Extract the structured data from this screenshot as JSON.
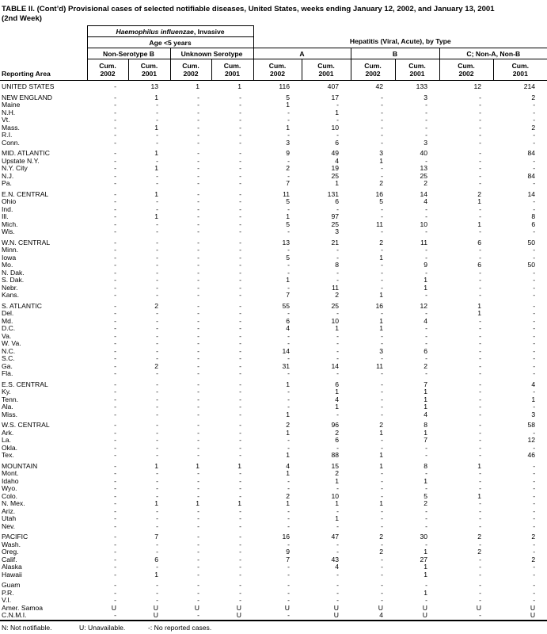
{
  "colors": {
    "text": "#000000",
    "background": "#ffffff",
    "rule": "#000000"
  },
  "title": {
    "line1": "TABLE II. (Cont’d) Provisional cases of selected notifiable diseases, United States, weeks ending January 12, 2002, and January 13, 2001",
    "line2": "(2nd Week)"
  },
  "header": {
    "reporting_area": "Reporting Area",
    "group1_italic": "Haemophilus influenzae",
    "group1_rest": ", Invasive",
    "group1_sub": "Age <5 years",
    "group2": "Hepatitis (Viral, Acute), by Type",
    "subgroups": {
      "non_serotype_b": "Non-Serotype B",
      "unknown_serotype": "Unknown Serotype",
      "hep_a": "A",
      "hep_b": "B",
      "hep_c": "C; Non-A, Non-B"
    },
    "cum_label": "Cum.",
    "years": [
      "2002",
      "2001",
      "2002",
      "2001",
      "2002",
      "2001",
      "2002",
      "2001",
      "2002",
      "2001"
    ]
  },
  "sections": [
    {
      "rows": [
        {
          "area": "UNITED STATES",
          "values": [
            "-",
            "13",
            "1",
            "1",
            "116",
            "407",
            "42",
            "133",
            "12",
            "214"
          ]
        }
      ]
    },
    {
      "rows": [
        {
          "area": "NEW ENGLAND",
          "values": [
            "-",
            "1",
            "-",
            "-",
            "5",
            "17",
            "-",
            "3",
            "-",
            "2"
          ]
        },
        {
          "area": "Maine",
          "values": [
            "-",
            "-",
            "-",
            "-",
            "1",
            "-",
            "-",
            "-",
            "-",
            "-"
          ]
        },
        {
          "area": "N.H.",
          "values": [
            "-",
            "-",
            "-",
            "-",
            "-",
            "1",
            "-",
            "-",
            "-",
            "-"
          ]
        },
        {
          "area": "Vt.",
          "values": [
            "-",
            "-",
            "-",
            "-",
            "-",
            "-",
            "-",
            "-",
            "-",
            "-"
          ]
        },
        {
          "area": "Mass.",
          "values": [
            "-",
            "1",
            "-",
            "-",
            "1",
            "10",
            "-",
            "-",
            "-",
            "2"
          ]
        },
        {
          "area": "R.I.",
          "values": [
            "-",
            "-",
            "-",
            "-",
            "-",
            "-",
            "-",
            "-",
            "-",
            "-"
          ]
        },
        {
          "area": "Conn.",
          "values": [
            "-",
            "-",
            "-",
            "-",
            "3",
            "6",
            "-",
            "3",
            "-",
            "-"
          ]
        }
      ]
    },
    {
      "rows": [
        {
          "area": "MID. ATLANTIC",
          "values": [
            "-",
            "1",
            "-",
            "-",
            "9",
            "49",
            "3",
            "40",
            "-",
            "84"
          ]
        },
        {
          "area": "Upstate N.Y.",
          "values": [
            "-",
            "-",
            "-",
            "-",
            "-",
            "4",
            "1",
            "-",
            "-",
            "-"
          ]
        },
        {
          "area": "N.Y. City",
          "values": [
            "-",
            "1",
            "-",
            "-",
            "2",
            "19",
            "-",
            "13",
            "-",
            "-"
          ]
        },
        {
          "area": "N.J.",
          "values": [
            "-",
            "-",
            "-",
            "-",
            "-",
            "25",
            "-",
            "25",
            "-",
            "84"
          ]
        },
        {
          "area": "Pa.",
          "values": [
            "-",
            "-",
            "-",
            "-",
            "7",
            "1",
            "2",
            "2",
            "-",
            "-"
          ]
        }
      ]
    },
    {
      "rows": [
        {
          "area": "E.N. CENTRAL",
          "values": [
            "-",
            "1",
            "-",
            "-",
            "11",
            "131",
            "16",
            "14",
            "2",
            "14"
          ]
        },
        {
          "area": "Ohio",
          "values": [
            "-",
            "-",
            "-",
            "-",
            "5",
            "6",
            "5",
            "4",
            "1",
            "-"
          ]
        },
        {
          "area": "Ind.",
          "values": [
            "-",
            "-",
            "-",
            "-",
            "-",
            "-",
            "-",
            "-",
            "-",
            "-"
          ]
        },
        {
          "area": "Ill.",
          "values": [
            "-",
            "1",
            "-",
            "-",
            "1",
            "97",
            "-",
            "-",
            "-",
            "8"
          ]
        },
        {
          "area": "Mich.",
          "values": [
            "-",
            "-",
            "-",
            "-",
            "5",
            "25",
            "11",
            "10",
            "1",
            "6"
          ]
        },
        {
          "area": "Wis.",
          "values": [
            "-",
            "-",
            "-",
            "-",
            "-",
            "3",
            "-",
            "-",
            "-",
            "-"
          ]
        }
      ]
    },
    {
      "rows": [
        {
          "area": "W.N. CENTRAL",
          "values": [
            "-",
            "-",
            "-",
            "-",
            "13",
            "21",
            "2",
            "11",
            "6",
            "50"
          ]
        },
        {
          "area": "Minn.",
          "values": [
            "-",
            "-",
            "-",
            "-",
            "-",
            "-",
            "-",
            "-",
            "-",
            "-"
          ]
        },
        {
          "area": "Iowa",
          "values": [
            "-",
            "-",
            "-",
            "-",
            "5",
            "-",
            "1",
            "-",
            "-",
            "-"
          ]
        },
        {
          "area": "Mo.",
          "values": [
            "-",
            "-",
            "-",
            "-",
            "-",
            "8",
            "-",
            "9",
            "6",
            "50"
          ]
        },
        {
          "area": "N. Dak.",
          "values": [
            "-",
            "-",
            "-",
            "-",
            "-",
            "-",
            "-",
            "-",
            "-",
            "-"
          ]
        },
        {
          "area": "S. Dak.",
          "values": [
            "-",
            "-",
            "-",
            "-",
            "1",
            "-",
            "-",
            "1",
            "-",
            "-"
          ]
        },
        {
          "area": "Nebr.",
          "values": [
            "-",
            "-",
            "-",
            "-",
            "-",
            "11",
            "-",
            "1",
            "-",
            "-"
          ]
        },
        {
          "area": "Kans.",
          "values": [
            "-",
            "-",
            "-",
            "-",
            "7",
            "2",
            "1",
            "-",
            "-",
            "-"
          ]
        }
      ]
    },
    {
      "rows": [
        {
          "area": "S. ATLANTIC",
          "values": [
            "-",
            "2",
            "-",
            "-",
            "55",
            "25",
            "16",
            "12",
            "1",
            "-"
          ]
        },
        {
          "area": "Del.",
          "values": [
            "-",
            "-",
            "-",
            "-",
            "-",
            "-",
            "-",
            "-",
            "1",
            "-"
          ]
        },
        {
          "area": "Md.",
          "values": [
            "-",
            "-",
            "-",
            "-",
            "6",
            "10",
            "1",
            "4",
            "-",
            "-"
          ]
        },
        {
          "area": "D.C.",
          "values": [
            "-",
            "-",
            "-",
            "-",
            "4",
            "1",
            "1",
            "-",
            "-",
            "-"
          ]
        },
        {
          "area": "Va.",
          "values": [
            "-",
            "-",
            "-",
            "-",
            "-",
            "-",
            "-",
            "-",
            "-",
            "-"
          ]
        },
        {
          "area": "W. Va.",
          "values": [
            "-",
            "-",
            "-",
            "-",
            "-",
            "-",
            "-",
            "-",
            "-",
            "-"
          ]
        },
        {
          "area": "N.C.",
          "values": [
            "-",
            "-",
            "-",
            "-",
            "14",
            "-",
            "3",
            "6",
            "-",
            "-"
          ]
        },
        {
          "area": "S.C.",
          "values": [
            "-",
            "-",
            "-",
            "-",
            "-",
            "-",
            "-",
            "-",
            "-",
            "-"
          ]
        },
        {
          "area": "Ga.",
          "values": [
            "-",
            "2",
            "-",
            "-",
            "31",
            "14",
            "11",
            "2",
            "-",
            "-"
          ]
        },
        {
          "area": "Fla.",
          "values": [
            "-",
            "-",
            "-",
            "-",
            "-",
            "-",
            "-",
            "-",
            "-",
            "-"
          ]
        }
      ]
    },
    {
      "rows": [
        {
          "area": "E.S. CENTRAL",
          "values": [
            "-",
            "-",
            "-",
            "-",
            "1",
            "6",
            "-",
            "7",
            "-",
            "4"
          ]
        },
        {
          "area": "Ky.",
          "values": [
            "-",
            "-",
            "-",
            "-",
            "-",
            "1",
            "-",
            "1",
            "-",
            "-"
          ]
        },
        {
          "area": "Tenn.",
          "values": [
            "-",
            "-",
            "-",
            "-",
            "-",
            "4",
            "-",
            "1",
            "-",
            "1"
          ]
        },
        {
          "area": "Ala.",
          "values": [
            "-",
            "-",
            "-",
            "-",
            "-",
            "1",
            "-",
            "1",
            "-",
            "-"
          ]
        },
        {
          "area": "Miss.",
          "values": [
            "-",
            "-",
            "-",
            "-",
            "1",
            "-",
            "-",
            "4",
            "-",
            "3"
          ]
        }
      ]
    },
    {
      "rows": [
        {
          "area": "W.S. CENTRAL",
          "values": [
            "-",
            "-",
            "-",
            "-",
            "2",
            "96",
            "2",
            "8",
            "-",
            "58"
          ]
        },
        {
          "area": "Ark.",
          "values": [
            "-",
            "-",
            "-",
            "-",
            "1",
            "2",
            "1",
            "1",
            "-",
            "-"
          ]
        },
        {
          "area": "La.",
          "values": [
            "-",
            "-",
            "-",
            "-",
            "-",
            "6",
            "-",
            "7",
            "-",
            "12"
          ]
        },
        {
          "area": "Okla.",
          "values": [
            "-",
            "-",
            "-",
            "-",
            "-",
            "-",
            "-",
            "-",
            "-",
            "-"
          ]
        },
        {
          "area": "Tex.",
          "values": [
            "-",
            "-",
            "-",
            "-",
            "1",
            "88",
            "1",
            "-",
            "-",
            "46"
          ]
        }
      ]
    },
    {
      "rows": [
        {
          "area": "MOUNTAIN",
          "values": [
            "-",
            "1",
            "1",
            "1",
            "4",
            "15",
            "1",
            "8",
            "1",
            "-"
          ]
        },
        {
          "area": "Mont.",
          "values": [
            "-",
            "-",
            "-",
            "-",
            "1",
            "2",
            "-",
            "-",
            "-",
            "-"
          ]
        },
        {
          "area": "Idaho",
          "values": [
            "-",
            "-",
            "-",
            "-",
            "-",
            "1",
            "-",
            "1",
            "-",
            "-"
          ]
        },
        {
          "area": "Wyo.",
          "values": [
            "-",
            "-",
            "-",
            "-",
            "-",
            "-",
            "-",
            "-",
            "-",
            "-"
          ]
        },
        {
          "area": "Colo.",
          "values": [
            "-",
            "-",
            "-",
            "-",
            "2",
            "10",
            "-",
            "5",
            "1",
            "-"
          ]
        },
        {
          "area": "N. Mex.",
          "values": [
            "-",
            "1",
            "1",
            "1",
            "1",
            "1",
            "1",
            "2",
            "-",
            "-"
          ]
        },
        {
          "area": "Ariz.",
          "values": [
            "-",
            "-",
            "-",
            "-",
            "-",
            "-",
            "-",
            "-",
            "-",
            "-"
          ]
        },
        {
          "area": "Utah",
          "values": [
            "-",
            "-",
            "-",
            "-",
            "-",
            "1",
            "-",
            "-",
            "-",
            "-"
          ]
        },
        {
          "area": "Nev.",
          "values": [
            "-",
            "-",
            "-",
            "-",
            "-",
            "-",
            "-",
            "-",
            "-",
            "-"
          ]
        }
      ]
    },
    {
      "rows": [
        {
          "area": "PACIFIC",
          "values": [
            "-",
            "7",
            "-",
            "-",
            "16",
            "47",
            "2",
            "30",
            "2",
            "2"
          ]
        },
        {
          "area": "Wash.",
          "values": [
            "-",
            "-",
            "-",
            "-",
            "-",
            "-",
            "-",
            "-",
            "-",
            "-"
          ]
        },
        {
          "area": "Oreg.",
          "values": [
            "-",
            "-",
            "-",
            "-",
            "9",
            "-",
            "2",
            "1",
            "2",
            "-"
          ]
        },
        {
          "area": "Calif.",
          "values": [
            "-",
            "6",
            "-",
            "-",
            "7",
            "43",
            "-",
            "27",
            "-",
            "2"
          ]
        },
        {
          "area": "Alaska",
          "values": [
            "-",
            "-",
            "-",
            "-",
            "-",
            "4",
            "-",
            "1",
            "-",
            "-"
          ]
        },
        {
          "area": "Hawaii",
          "values": [
            "-",
            "1",
            "-",
            "-",
            "-",
            "-",
            "-",
            "1",
            "-",
            "-"
          ]
        }
      ]
    },
    {
      "rows": [
        {
          "area": "Guam",
          "values": [
            "-",
            "-",
            "-",
            "-",
            "-",
            "-",
            "-",
            "-",
            "-",
            "-"
          ]
        },
        {
          "area": "P.R.",
          "values": [
            "-",
            "-",
            "-",
            "-",
            "-",
            "-",
            "-",
            "1",
            "-",
            "-"
          ]
        },
        {
          "area": "V.I.",
          "values": [
            "-",
            "-",
            "-",
            "-",
            "-",
            "-",
            "-",
            "-",
            "-",
            "-"
          ]
        },
        {
          "area": "Amer. Samoa",
          "values": [
            "U",
            "U",
            "U",
            "U",
            "U",
            "U",
            "U",
            "U",
            "U",
            "U"
          ]
        },
        {
          "area": "C.N.M.I.",
          "values": [
            "-",
            "U",
            "-",
            "U",
            "-",
            "U",
            "4",
            "U",
            "-",
            "U"
          ]
        }
      ]
    }
  ],
  "footnotes": {
    "n": "N: Not notifiable.",
    "u": "U: Unavailable.",
    "dash": "-: No reported cases."
  }
}
